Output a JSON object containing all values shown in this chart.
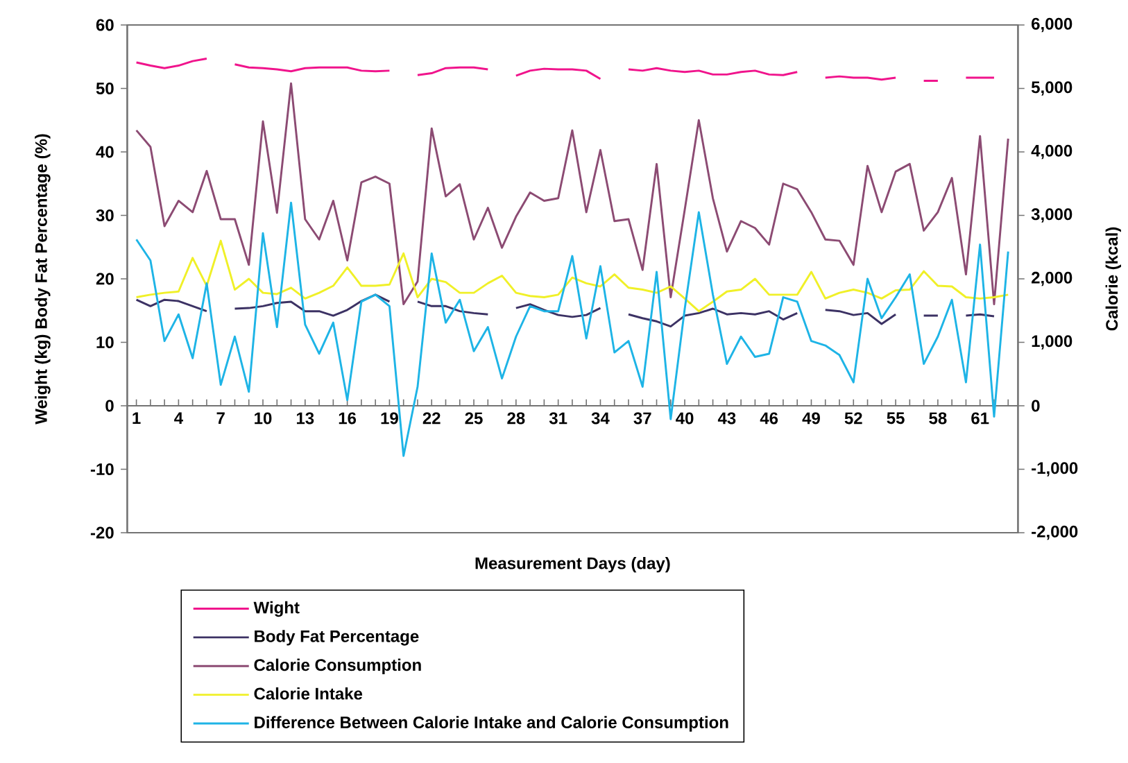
{
  "chart_data": {
    "type": "line",
    "xlabel": "Measurement Days (day)",
    "ylabel": "Weight (kg) Body Fat Percentage (%)",
    "y2label": "Calorie (kcal)",
    "x": [
      1,
      2,
      3,
      4,
      5,
      6,
      7,
      8,
      9,
      10,
      11,
      12,
      13,
      14,
      15,
      16,
      17,
      18,
      19,
      20,
      21,
      22,
      23,
      24,
      25,
      26,
      27,
      28,
      29,
      30,
      31,
      32,
      33,
      34,
      35,
      36,
      37,
      38,
      39,
      40,
      41,
      42,
      43,
      44,
      45,
      46,
      47,
      48,
      49,
      50,
      51,
      52,
      53,
      54,
      55,
      56,
      57,
      58,
      59,
      60,
      61,
      62,
      63
    ],
    "xlim": [
      0.35,
      63.7
    ],
    "xticks": [
      1,
      {
        "value": 2,
        "label": null
      },
      {
        "value": 3,
        "label": null
      },
      4,
      {
        "value": 5,
        "label": null
      },
      {
        "value": 6,
        "label": null
      },
      7,
      {
        "value": 8,
        "label": null
      },
      {
        "value": 9,
        "label": null
      },
      10,
      {
        "value": 11,
        "label": null
      },
      {
        "value": 12,
        "label": null
      },
      13,
      {
        "value": 14,
        "label": null
      },
      {
        "value": 15,
        "label": null
      },
      16,
      {
        "value": 17,
        "label": null
      },
      {
        "value": 18,
        "label": null
      },
      19,
      {
        "value": 20,
        "label": null
      },
      {
        "value": 21,
        "label": null
      },
      22,
      {
        "value": 23,
        "label": null
      },
      {
        "value": 24,
        "label": null
      },
      25,
      {
        "value": 26,
        "label": null
      },
      {
        "value": 27,
        "label": null
      },
      28,
      {
        "value": 29,
        "label": null
      },
      {
        "value": 30,
        "label": null
      },
      31,
      {
        "value": 32,
        "label": null
      },
      {
        "value": 33,
        "label": null
      },
      34,
      {
        "value": 35,
        "label": null
      },
      {
        "value": 36,
        "label": null
      },
      37,
      {
        "value": 38,
        "label": null
      },
      {
        "value": 39,
        "label": null
      },
      40,
      {
        "value": 41,
        "label": null
      },
      {
        "value": 42,
        "label": null
      },
      43,
      {
        "value": 44,
        "label": null
      },
      {
        "value": 45,
        "label": null
      },
      46,
      {
        "value": 47,
        "label": null
      },
      {
        "value": 48,
        "label": null
      },
      49,
      {
        "value": 50,
        "label": null
      },
      {
        "value": 51,
        "label": null
      },
      52,
      {
        "value": 53,
        "label": null
      },
      {
        "value": 54,
        "label": null
      },
      55,
      {
        "value": 56,
        "label": null
      },
      {
        "value": 57,
        "label": null
      },
      58,
      {
        "value": 59,
        "label": null
      },
      {
        "value": 60,
        "label": null
      },
      61,
      {
        "value": 62,
        "label": null
      },
      {
        "value": 63,
        "label": null
      }
    ],
    "ylim": [
      -20,
      60
    ],
    "yticks": [
      -20,
      -10,
      0,
      10,
      20,
      30,
      40,
      50,
      60
    ],
    "y2lim": [
      -2000,
      6000
    ],
    "y2ticks": [
      {
        "value": -2000,
        "label": "-2,000"
      },
      {
        "value": -1000,
        "label": "-1,000"
      },
      0,
      {
        "value": 1000,
        "label": "1,000"
      },
      {
        "value": 2000,
        "label": "2,000"
      },
      {
        "value": 3000,
        "label": "3,000"
      },
      {
        "value": 4000,
        "label": "4,000"
      },
      {
        "value": 5000,
        "label": "5,000"
      },
      {
        "value": 6000,
        "label": "6,000"
      }
    ],
    "legend": "bottom",
    "line_style": "solid",
    "series": [
      {
        "name": "Wight",
        "color": "#f0148c",
        "values": [
          54.1,
          53.6,
          53.2,
          53.6,
          54.3,
          54.7,
          null,
          53.8,
          53.3,
          53.2,
          53.0,
          52.7,
          53.2,
          53.3,
          53.3,
          53.3,
          52.8,
          52.7,
          52.8,
          null,
          52.1,
          52.4,
          53.2,
          53.3,
          53.3,
          53.0,
          null,
          52.0,
          52.8,
          53.1,
          53.0,
          53.0,
          52.8,
          51.5,
          null,
          53.0,
          52.8,
          53.2,
          52.8,
          52.6,
          52.8,
          52.2,
          52.2,
          52.6,
          52.8,
          52.2,
          52.1,
          52.6,
          null,
          51.7,
          51.9,
          51.7,
          51.7,
          51.4,
          51.7,
          null,
          51.2,
          51.2,
          null,
          51.7,
          51.7,
          51.7,
          null
        ]
      },
      {
        "name": "Body Fat Percentage",
        "color": "#3c3264",
        "values": [
          16.7,
          15.7,
          16.7,
          16.5,
          15.7,
          14.9,
          null,
          15.3,
          15.4,
          15.7,
          16.2,
          16.4,
          14.9,
          14.9,
          14.2,
          15.1,
          16.5,
          17.5,
          16.4,
          null,
          16.4,
          15.7,
          15.7,
          14.9,
          14.6,
          14.4,
          null,
          15.4,
          16.0,
          15.1,
          14.3,
          14.0,
          14.3,
          15.4,
          null,
          14.4,
          13.8,
          13.3,
          12.5,
          14.2,
          14.6,
          15.3,
          14.4,
          14.6,
          14.4,
          14.9,
          13.6,
          14.6,
          null,
          15.1,
          14.9,
          14.3,
          14.6,
          12.9,
          14.4,
          null,
          14.2,
          14.2,
          null,
          14.2,
          14.4,
          14.1,
          null
        ]
      },
      {
        "name": "Calorie Consumption",
        "color": "#8c4b73",
        "axis": "y2",
        "values": [
          4340,
          4080,
          2830,
          3230,
          3050,
          3700,
          2940,
          2940,
          2220,
          4480,
          3040,
          5080,
          2940,
          2620,
          3230,
          2290,
          3520,
          3610,
          3500,
          1600,
          1960,
          4370,
          3300,
          3490,
          2620,
          3120,
          2490,
          2980,
          3360,
          3230,
          3270,
          4340,
          3050,
          4030,
          2910,
          2940,
          2140,
          3810,
          1710,
          3090,
          4500,
          3270,
          2430,
          2910,
          2800,
          2540,
          3500,
          3410,
          3050,
          2620,
          2600,
          2220,
          3780,
          3050,
          3690,
          3810,
          2760,
          3050,
          3590,
          2070,
          4250,
          1600,
          4210
        ]
      },
      {
        "name": "Calorie Intake",
        "color": "#f0f028",
        "axis": "y2",
        "values": [
          1710,
          1750,
          1780,
          1800,
          2330,
          1890,
          2600,
          1830,
          2000,
          1780,
          1760,
          1860,
          1690,
          1780,
          1890,
          2180,
          1890,
          1890,
          1910,
          2400,
          1710,
          2000,
          1950,
          1780,
          1780,
          1930,
          2050,
          1780,
          1730,
          1710,
          1750,
          2020,
          1930,
          1880,
          2070,
          1860,
          1830,
          1780,
          1880,
          1690,
          1490,
          1640,
          1800,
          1830,
          2000,
          1750,
          1750,
          1750,
          2110,
          1690,
          1780,
          1830,
          1780,
          1690,
          1820,
          1830,
          2120,
          1890,
          1880,
          1710,
          1690,
          1710,
          1750
        ]
      },
      {
        "name": "Difference Between Calorie Intake and Calorie Consumption",
        "color": "#1eb4e6",
        "axis": "y2",
        "values": [
          2620,
          2290,
          1020,
          1440,
          750,
          1930,
          330,
          1090,
          220,
          2720,
          1240,
          3200,
          1280,
          820,
          1310,
          90,
          1640,
          1750,
          1570,
          -790,
          300,
          2400,
          1310,
          1670,
          860,
          1240,
          430,
          1090,
          1570,
          1490,
          1490,
          2360,
          1060,
          2200,
          840,
          1020,
          300,
          2110,
          -210,
          1530,
          3050,
          1750,
          660,
          1090,
          770,
          820,
          1710,
          1640,
          1020,
          950,
          800,
          370,
          2000,
          1380,
          1710,
          2070,
          660,
          1090,
          1670,
          370,
          2540,
          -170,
          2430
        ]
      }
    ]
  }
}
